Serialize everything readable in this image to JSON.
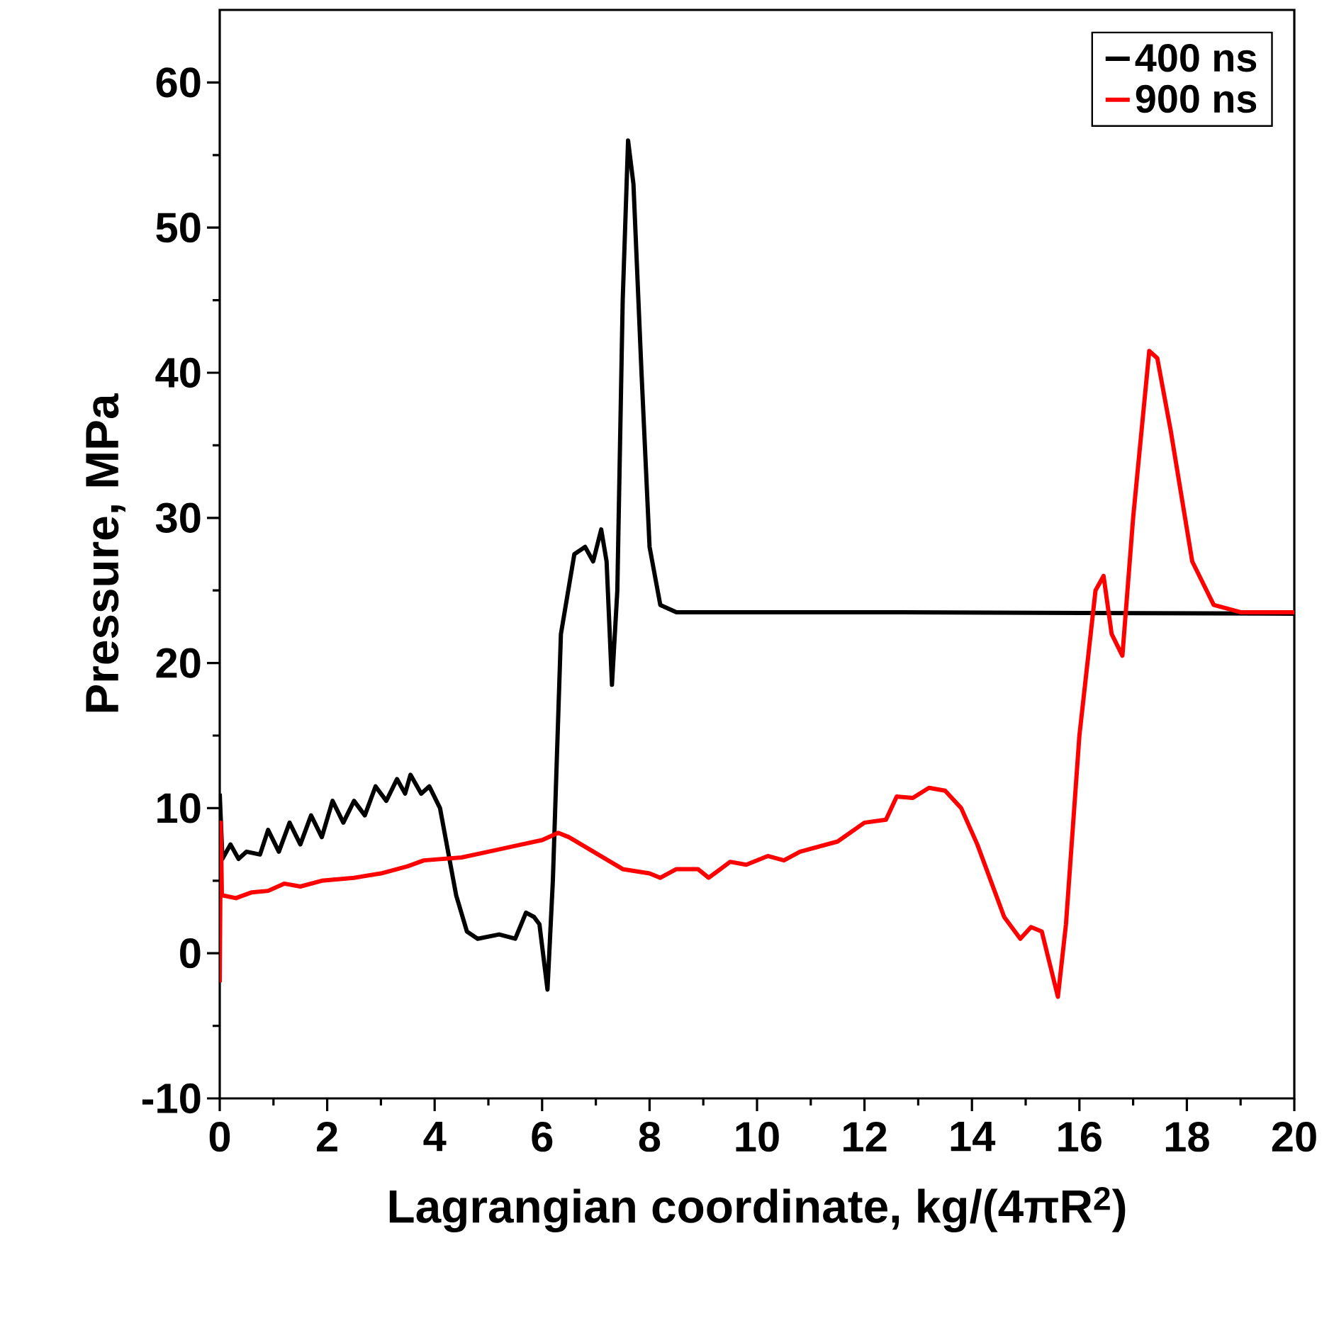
{
  "chart_data": {
    "type": "line",
    "xlabel": "Lagrangian coordinate, kg/(4πR$^{2}$)",
    "ylabel": "Pressure, MPa",
    "xlim": [
      0,
      20
    ],
    "ylim": [
      -10,
      65
    ],
    "xticks": [
      0,
      2,
      4,
      6,
      8,
      10,
      12,
      14,
      16,
      18,
      20
    ],
    "yticks": [
      -10,
      0,
      10,
      20,
      30,
      40,
      50,
      60
    ],
    "legend": "top right",
    "grid": false,
    "marker": "none",
    "line_style": "solid",
    "series": [
      {
        "name": "400 ns",
        "color": "#000000",
        "x": [
          0,
          0.05,
          0.2,
          0.35,
          0.5,
          0.75,
          0.9,
          1.1,
          1.3,
          1.5,
          1.7,
          1.9,
          2.1,
          2.3,
          2.5,
          2.7,
          2.9,
          3.1,
          3.3,
          3.45,
          3.55,
          3.75,
          3.9,
          4.1,
          4.3,
          4.4,
          4.6,
          4.8,
          5.2,
          5.5,
          5.7,
          5.85,
          5.95,
          6.1,
          6.2,
          6.35,
          6.6,
          6.8,
          6.95,
          7.1,
          7.2,
          7.3,
          7.4,
          7.5,
          7.6,
          7.7,
          7.85,
          8.0,
          8.2,
          8.5,
          12,
          20
        ],
        "values": [
          11,
          6.5,
          7.5,
          6.5,
          7,
          6.8,
          8.5,
          7,
          9,
          7.5,
          9.5,
          8,
          10.5,
          9,
          10.5,
          9.5,
          11.5,
          10.5,
          12,
          11,
          12.3,
          11,
          11.5,
          10,
          6,
          4,
          1.5,
          1,
          1.3,
          1,
          2.8,
          2.5,
          2,
          -2.5,
          5,
          22,
          27.5,
          28,
          27,
          29.2,
          27,
          18.5,
          25,
          45,
          56,
          53,
          40,
          28,
          24,
          23.5,
          23.5,
          23.4
        ]
      },
      {
        "name": "900 ns",
        "color": "#ff0000",
        "x": [
          0,
          0.02,
          0.04,
          0.3,
          0.6,
          0.9,
          1.2,
          1.5,
          1.9,
          2.5,
          3,
          3.5,
          3.8,
          4.5,
          5,
          5.5,
          6,
          6.3,
          6.5,
          7,
          7.5,
          8,
          8.2,
          8.5,
          8.9,
          9.1,
          9.5,
          9.8,
          10.2,
          10.5,
          10.8,
          11.5,
          12,
          12.4,
          12.6,
          12.9,
          13.2,
          13.5,
          13.8,
          14.1,
          14.6,
          14.9,
          15.1,
          15.3,
          15.6,
          15.75,
          16.0,
          16.3,
          16.45,
          16.6,
          16.8,
          17.0,
          17.3,
          17.45,
          17.7,
          18.1,
          18.5,
          19,
          20
        ],
        "values": [
          -2,
          9,
          4,
          3.8,
          4.2,
          4.3,
          4.8,
          4.6,
          5,
          5.2,
          5.5,
          6,
          6.4,
          6.6,
          7,
          7.4,
          7.8,
          8.3,
          8,
          6.9,
          5.8,
          5.5,
          5.2,
          5.8,
          5.8,
          5.2,
          6.3,
          6.1,
          6.7,
          6.4,
          7,
          7.7,
          9,
          9.2,
          10.8,
          10.7,
          11.4,
          11.2,
          10,
          7.5,
          2.5,
          1,
          1.8,
          1.5,
          -3,
          2,
          15,
          25,
          26,
          22,
          20.5,
          30,
          41.5,
          41,
          36,
          27,
          24,
          23.5,
          23.5
        ]
      }
    ]
  }
}
